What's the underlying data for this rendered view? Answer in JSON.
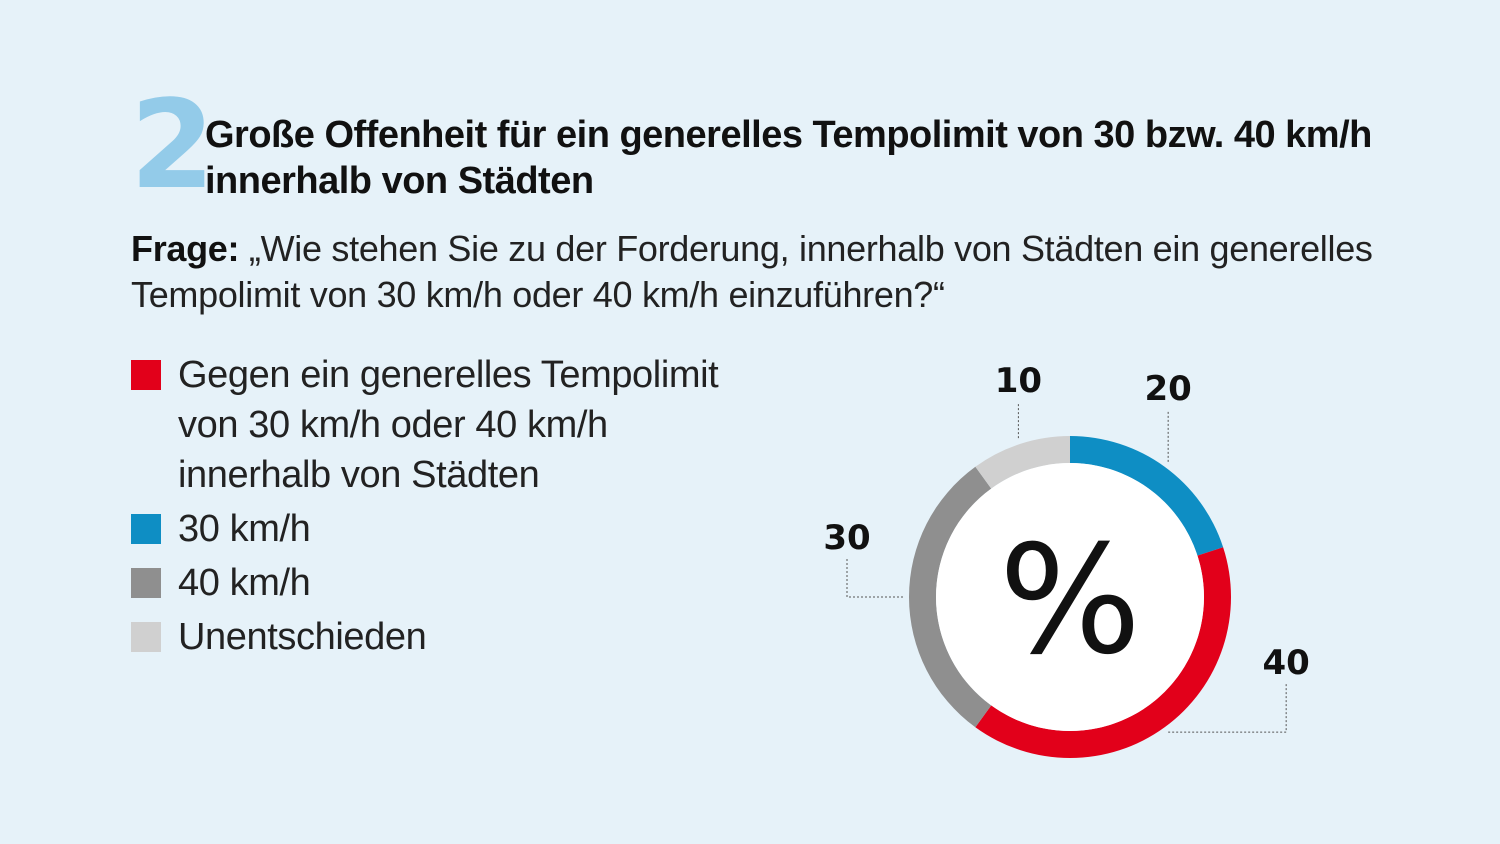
{
  "header": {
    "number": "2",
    "title": "Große Offenheit für ein generelles Tempolimit von 30 bzw. 40 km/h innerhalb von Städten"
  },
  "question": {
    "label": "Frage:",
    "text": " „Wie stehen Sie zu der Forderung, innerhalb von Städten ein generelles Tempolimit von 30 km/h oder 40 km/h einzuführen?“"
  },
  "chart_data": {
    "type": "pie",
    "unit_label": "%",
    "categories": [
      "30 km/h",
      "Gegen ein generelles Tempolimit von 30 km/h oder 40 km/h innerhalb von Städten",
      "40 km/h",
      "Unentschieden"
    ],
    "values": [
      20,
      40,
      30,
      10
    ],
    "value_labels": [
      "20",
      "40",
      "30",
      "10"
    ],
    "colors": [
      "#0e8ec4",
      "#e2001a",
      "#8f8f8f",
      "#d0d0d0"
    ],
    "legend": [
      {
        "label": "Gegen ein generelles Tempolimit von 30 km/h oder 40 km/h innerhalb von Städten",
        "color": "#e2001a"
      },
      {
        "label": "30 km/h",
        "color": "#0e8ec4"
      },
      {
        "label": "40 km/h",
        "color": "#8f8f8f"
      },
      {
        "label": "Unentschieden",
        "color": "#d0d0d0"
      }
    ],
    "legend_position": "left"
  }
}
